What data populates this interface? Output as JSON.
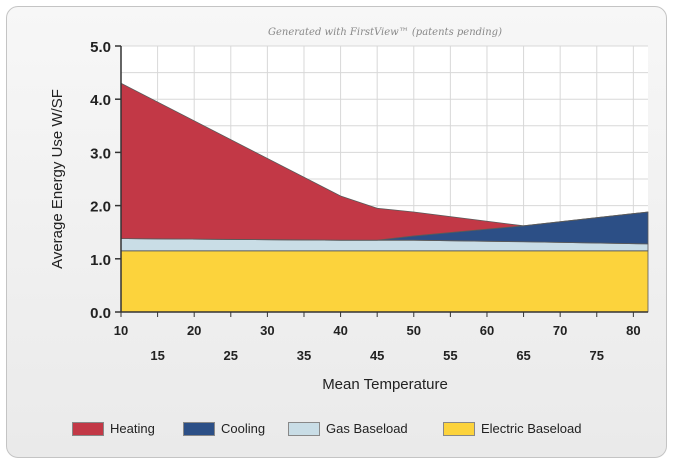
{
  "chart_data": {
    "type": "area",
    "stacked": true,
    "watermark": "Generated with FirstView™ (patents pending)",
    "xlabel": "Mean Temperature",
    "ylabel": "Average Energy Use W/SF",
    "xlim": [
      10,
      82
    ],
    "ylim": [
      0,
      5
    ],
    "y_ticks": [
      "0.0",
      "1.0",
      "2.0",
      "3.0",
      "4.0",
      "5.0"
    ],
    "x_ticks_top": [
      "10",
      "20",
      "30",
      "40",
      "50",
      "60",
      "70",
      "80"
    ],
    "x_ticks_bottom": [
      "15",
      "25",
      "35",
      "45",
      "55",
      "65",
      "75"
    ],
    "grid": true,
    "legend_position": "bottom",
    "x": [
      10,
      40,
      45,
      50,
      65,
      82
    ],
    "series": [
      {
        "name": "Electric Baseload",
        "color": "#fcd33c",
        "values": [
          1.15,
          1.15,
          1.15,
          1.15,
          1.15,
          1.15
        ]
      },
      {
        "name": "Gas Baseload",
        "color": "#c9dde6",
        "values": [
          0.23,
          0.2,
          0.2,
          0.2,
          0.17,
          0.13
        ]
      },
      {
        "name": "Cooling",
        "color": "#2c4f86",
        "values": [
          0.0,
          0.0,
          0.0,
          0.08,
          0.3,
          0.6
        ]
      },
      {
        "name": "Heating",
        "color": "#c23846",
        "values": [
          2.92,
          0.83,
          0.6,
          0.45,
          0.0,
          0.0
        ]
      }
    ],
    "legend": [
      {
        "name": "Heating",
        "color": "#c23846"
      },
      {
        "name": "Cooling",
        "color": "#2c4f86"
      },
      {
        "name": "Gas Baseload",
        "color": "#c9dde6"
      },
      {
        "name": "Electric Baseload",
        "color": "#fcd33c"
      }
    ]
  }
}
